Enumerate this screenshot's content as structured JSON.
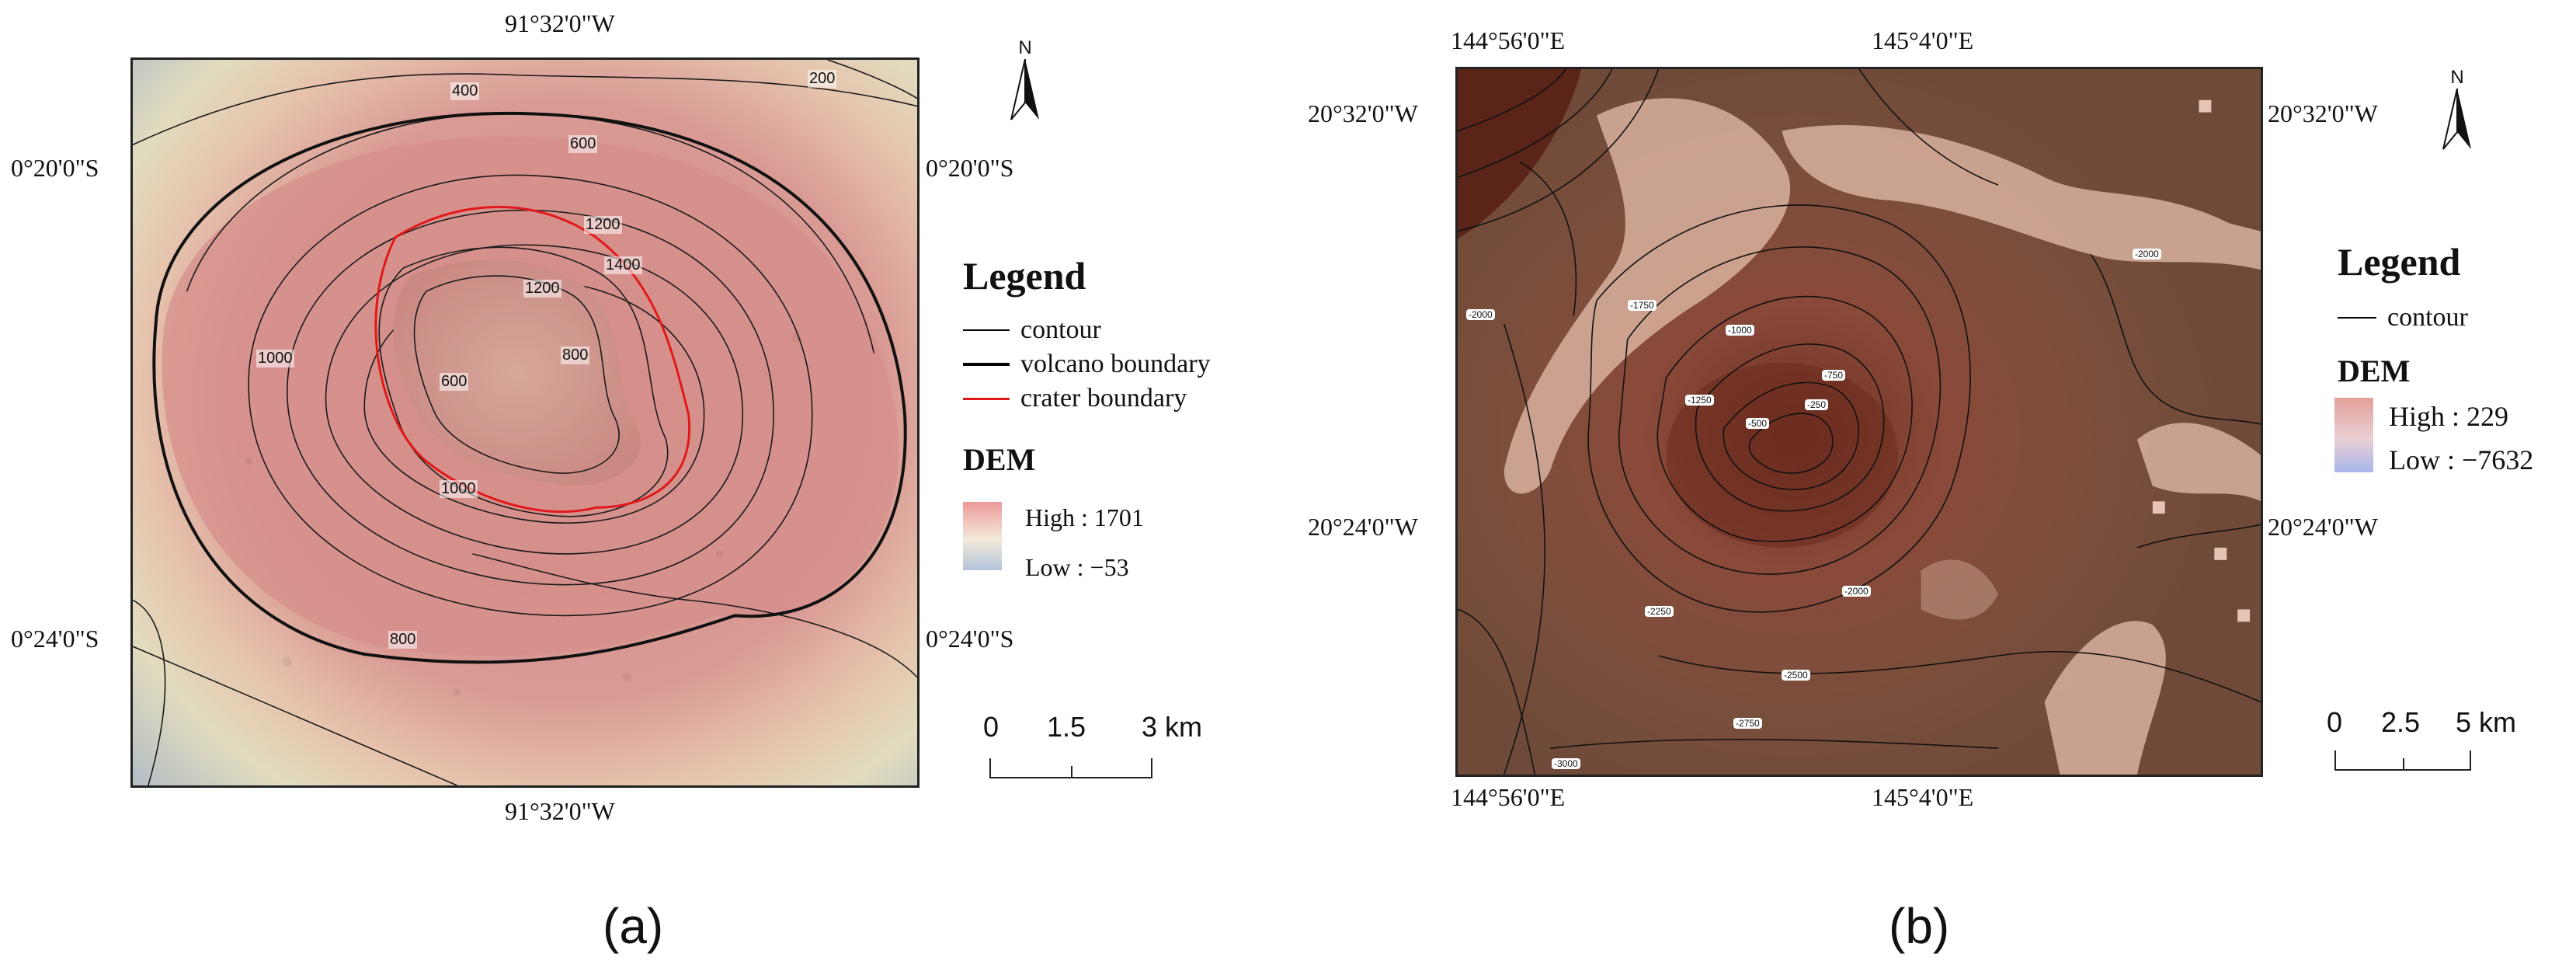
{
  "panels": {
    "a": {
      "label": "(a)",
      "coords": {
        "top_lon": "91°32'0\"W",
        "bottom_lon": "91°32'0\"W",
        "left_lat_1": "0°20'0\"S",
        "left_lat_2": "0°24'0\"S",
        "right_lat_1": "0°20'0\"S",
        "right_lat_2": "0°24'0\"S"
      },
      "contour_labels": [
        "400",
        "200",
        "600",
        "1200",
        "1400",
        "1200",
        "800",
        "600",
        "1000",
        "1000",
        "800"
      ],
      "legend": {
        "title": "Legend",
        "items": [
          {
            "label": "contour",
            "color": "#000000"
          },
          {
            "label": "volcano boundary",
            "color": "#000000"
          },
          {
            "label": "crater boundary",
            "color": "#e01818"
          }
        ],
        "dem_title": "DEM",
        "dem_high": "High : 1701",
        "dem_low": "Low : −53",
        "dem_colors": {
          "high": "#ee9a9a",
          "mid": "#f2ead8",
          "low": "#b4c4dc"
        }
      },
      "scale": {
        "ticks": [
          "0",
          "1.5",
          "3 km"
        ]
      },
      "north": "N"
    },
    "b": {
      "label": "(b)",
      "coords": {
        "top_lon_1": "144°56'0\"E",
        "top_lon_2": "145°4'0\"E",
        "bottom_lon_1": "144°56'0\"E",
        "bottom_lon_2": "145°4'0\"E",
        "left_lat_1": "20°32'0\"W",
        "left_lat_2": "20°24'0\"W",
        "right_lat_1": "20°32'0\"W",
        "right_lat_2": "20°24'0\"W"
      },
      "contour_labels": [
        "-2000",
        "-1750",
        "-1000",
        "-1250",
        "-750",
        "-500",
        "-250",
        "-2250",
        "-2000",
        "-2500",
        "-2750",
        "-3000",
        "-2000"
      ],
      "legend": {
        "title": "Legend",
        "items": [
          {
            "label": "contour",
            "color": "#000000"
          }
        ],
        "dem_title": "DEM",
        "dem_high": "High : 229",
        "dem_low": "Low : −7632",
        "dem_colors": {
          "high": "#e2a09a",
          "mid": "#ead0d4",
          "low": "#a8b6ea"
        }
      },
      "scale": {
        "ticks": [
          "0",
          "2.5",
          "5 km"
        ]
      },
      "north": "N"
    }
  }
}
